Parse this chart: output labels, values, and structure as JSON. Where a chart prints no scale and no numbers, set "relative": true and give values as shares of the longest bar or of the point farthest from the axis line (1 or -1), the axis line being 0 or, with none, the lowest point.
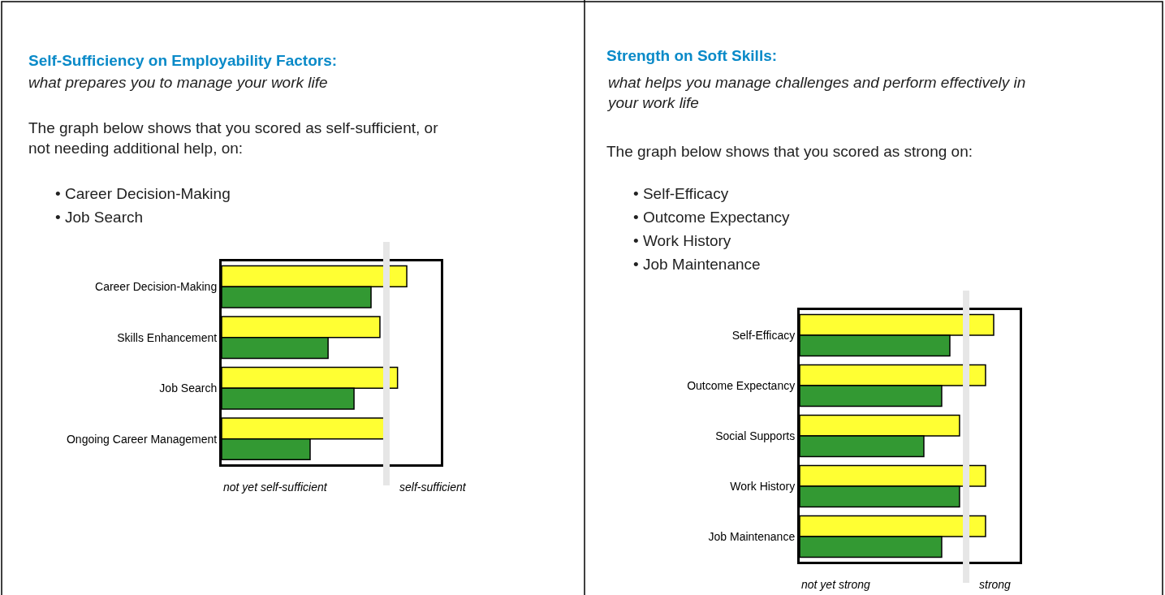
{
  "chart_data": [
    {
      "type": "bar",
      "orientation": "horizontal",
      "relative": true,
      "title": "Self-Sufficiency on Employability Factors:",
      "subtitle": "what prepares you to manage your work life",
      "annotations": [
        "The graph below shows that you scored as self-sufficient, or not needing additional help, on:",
        "• Career Decision-Making",
        "• Job Search",
        "not yet self-sufficient",
        "self-sufficient"
      ],
      "categories": [
        "Career Decision-Making",
        "Skills Enhancement",
        "Job Search",
        "Ongoing Career Management"
      ],
      "series": [
        {
          "color": "#ffff33",
          "values": [
            1,
            0.855,
            0.95,
            0.877
          ]
        },
        {
          "color": "#339933",
          "values": [
            0.807,
            0.575,
            0.715,
            0.478
          ]
        }
      ],
      "ref_lines": [
        {
          "axis": "x",
          "value": 0.89,
          "color": "#e6e6e6"
        }
      ]
    },
    {
      "type": "bar",
      "orientation": "horizontal",
      "relative": true,
      "title": "Strength on Soft Skills:",
      "subtitle": "what helps you manage challenges and perform effectively in your work life",
      "annotations": [
        "The graph below shows that you scored as strong on:",
        "• Self-Efficacy",
        "• Outcome Expectancy",
        "• Work History",
        "• Job Maintenance",
        "not yet strong",
        "strong"
      ],
      "categories": [
        "Self-Efficacy",
        "Outcome Expectancy",
        "Social Supports",
        "Work History",
        "Job Maintenance"
      ],
      "series": [
        {
          "color": "#ffff33",
          "values": [
            1,
            0.958,
            0.824,
            0.958,
            0.958
          ]
        },
        {
          "color": "#339933",
          "values": [
            0.774,
            0.732,
            0.64,
            0.824,
            0.732
          ]
        }
      ],
      "ref_lines": [
        {
          "axis": "x",
          "value": 0.858,
          "color": "#e6e6e6"
        }
      ]
    }
  ]
}
